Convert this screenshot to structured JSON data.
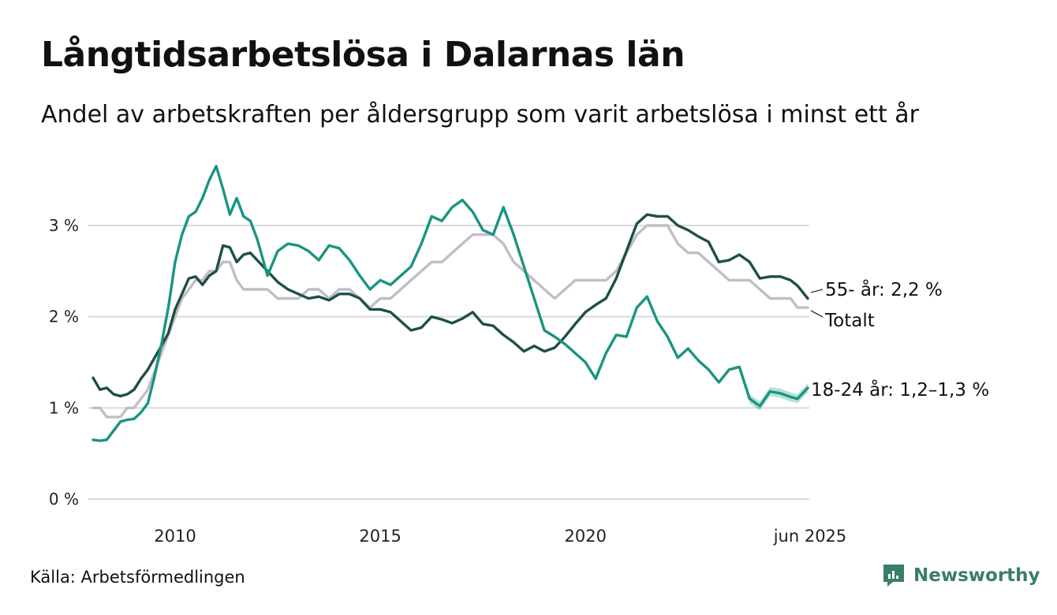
{
  "title": "Långtidsarbetslösa i Dalarnas län",
  "subtitle": "Andel av arbetskraften per åldersgrupp som varit arbetslösa i minst ett år",
  "source": "Källa: Arbetsförmedlingen",
  "brand": {
    "name": "Newsworthy",
    "color": "#3b7d6c"
  },
  "chart_data": {
    "type": "line",
    "title": "Långtidsarbetslösa i Dalarnas län",
    "subtitle": "Andel av arbetskraften per åldersgrupp som varit arbetslösa i minst ett år",
    "xlim": [
      "2008-01",
      "2025-06"
    ],
    "ylim": [
      0,
      3.8
    ],
    "grid": true,
    "y_ticks": [
      {
        "value": 0,
        "label": "0 %"
      },
      {
        "value": 1,
        "label": "1 %"
      },
      {
        "value": 2,
        "label": "2 %"
      },
      {
        "value": 3,
        "label": "3 %"
      }
    ],
    "x_ticks": [
      {
        "value": "2010-01",
        "label": "2010"
      },
      {
        "value": "2015-01",
        "label": "2015"
      },
      {
        "value": "2020-01",
        "label": "2020"
      },
      {
        "value": "2025-06",
        "label": "jun 2025"
      }
    ],
    "series": [
      {
        "name": "Totalt",
        "label": "Totalt",
        "color": "#c2bdc9",
        "points": [
          [
            "2008-01",
            1.0
          ],
          [
            "2008-03",
            1.0
          ],
          [
            "2008-05",
            0.9
          ],
          [
            "2008-07",
            0.9
          ],
          [
            "2008-09",
            0.9
          ],
          [
            "2008-11",
            1.0
          ],
          [
            "2009-01",
            1.0
          ],
          [
            "2009-03",
            1.1
          ],
          [
            "2009-05",
            1.2
          ],
          [
            "2009-07",
            1.4
          ],
          [
            "2009-09",
            1.6
          ],
          [
            "2009-11",
            1.8
          ],
          [
            "2010-01",
            2.0
          ],
          [
            "2010-03",
            2.2
          ],
          [
            "2010-05",
            2.3
          ],
          [
            "2010-07",
            2.4
          ],
          [
            "2010-09",
            2.4
          ],
          [
            "2010-11",
            2.5
          ],
          [
            "2011-01",
            2.5
          ],
          [
            "2011-03",
            2.6
          ],
          [
            "2011-05",
            2.6
          ],
          [
            "2011-07",
            2.4
          ],
          [
            "2011-09",
            2.3
          ],
          [
            "2011-11",
            2.3
          ],
          [
            "2012-01",
            2.3
          ],
          [
            "2012-04",
            2.3
          ],
          [
            "2012-07",
            2.2
          ],
          [
            "2012-10",
            2.2
          ],
          [
            "2013-01",
            2.2
          ],
          [
            "2013-04",
            2.3
          ],
          [
            "2013-07",
            2.3
          ],
          [
            "2013-10",
            2.2
          ],
          [
            "2014-01",
            2.3
          ],
          [
            "2014-04",
            2.3
          ],
          [
            "2014-07",
            2.2
          ],
          [
            "2014-10",
            2.1
          ],
          [
            "2015-01",
            2.2
          ],
          [
            "2015-04",
            2.2
          ],
          [
            "2015-07",
            2.3
          ],
          [
            "2015-10",
            2.4
          ],
          [
            "2016-01",
            2.5
          ],
          [
            "2016-04",
            2.6
          ],
          [
            "2016-07",
            2.6
          ],
          [
            "2016-10",
            2.7
          ],
          [
            "2017-01",
            2.8
          ],
          [
            "2017-04",
            2.9
          ],
          [
            "2017-07",
            2.9
          ],
          [
            "2017-10",
            2.9
          ],
          [
            "2018-01",
            2.8
          ],
          [
            "2018-04",
            2.6
          ],
          [
            "2018-07",
            2.5
          ],
          [
            "2018-10",
            2.4
          ],
          [
            "2019-01",
            2.3
          ],
          [
            "2019-04",
            2.2
          ],
          [
            "2019-07",
            2.3
          ],
          [
            "2019-10",
            2.4
          ],
          [
            "2020-01",
            2.4
          ],
          [
            "2020-04",
            2.4
          ],
          [
            "2020-07",
            2.4
          ],
          [
            "2020-10",
            2.5
          ],
          [
            "2021-01",
            2.7
          ],
          [
            "2021-04",
            2.9
          ],
          [
            "2021-07",
            3.0
          ],
          [
            "2021-10",
            3.0
          ],
          [
            "2022-01",
            3.0
          ],
          [
            "2022-04",
            2.8
          ],
          [
            "2022-07",
            2.7
          ],
          [
            "2022-10",
            2.7
          ],
          [
            "2023-01",
            2.6
          ],
          [
            "2023-04",
            2.5
          ],
          [
            "2023-07",
            2.4
          ],
          [
            "2023-10",
            2.4
          ],
          [
            "2024-01",
            2.4
          ],
          [
            "2024-04",
            2.3
          ],
          [
            "2024-07",
            2.2
          ],
          [
            "2024-10",
            2.2
          ],
          [
            "2025-01",
            2.2
          ],
          [
            "2025-03",
            2.1
          ],
          [
            "2025-06",
            2.1
          ]
        ]
      },
      {
        "name": "55- år",
        "label": "55- år: 2,2 %",
        "color": "#1f4f45",
        "points": [
          [
            "2008-01",
            1.33
          ],
          [
            "2008-03",
            1.2
          ],
          [
            "2008-05",
            1.22
          ],
          [
            "2008-07",
            1.15
          ],
          [
            "2008-09",
            1.13
          ],
          [
            "2008-11",
            1.15
          ],
          [
            "2009-01",
            1.2
          ],
          [
            "2009-03",
            1.32
          ],
          [
            "2009-05",
            1.42
          ],
          [
            "2009-07",
            1.55
          ],
          [
            "2009-09",
            1.68
          ],
          [
            "2009-11",
            1.82
          ],
          [
            "2010-01",
            2.08
          ],
          [
            "2010-03",
            2.25
          ],
          [
            "2010-05",
            2.42
          ],
          [
            "2010-07",
            2.44
          ],
          [
            "2010-09",
            2.35
          ],
          [
            "2010-11",
            2.45
          ],
          [
            "2011-01",
            2.5
          ],
          [
            "2011-03",
            2.78
          ],
          [
            "2011-05",
            2.76
          ],
          [
            "2011-07",
            2.6
          ],
          [
            "2011-09",
            2.68
          ],
          [
            "2011-11",
            2.7
          ],
          [
            "2012-01",
            2.62
          ],
          [
            "2012-04",
            2.5
          ],
          [
            "2012-07",
            2.38
          ],
          [
            "2012-10",
            2.3
          ],
          [
            "2013-01",
            2.25
          ],
          [
            "2013-04",
            2.2
          ],
          [
            "2013-07",
            2.22
          ],
          [
            "2013-10",
            2.18
          ],
          [
            "2014-01",
            2.25
          ],
          [
            "2014-04",
            2.25
          ],
          [
            "2014-07",
            2.2
          ],
          [
            "2014-10",
            2.08
          ],
          [
            "2015-01",
            2.08
          ],
          [
            "2015-04",
            2.05
          ],
          [
            "2015-07",
            1.95
          ],
          [
            "2015-10",
            1.85
          ],
          [
            "2016-01",
            1.88
          ],
          [
            "2016-04",
            2.0
          ],
          [
            "2016-07",
            1.97
          ],
          [
            "2016-10",
            1.93
          ],
          [
            "2017-01",
            1.98
          ],
          [
            "2017-04",
            2.05
          ],
          [
            "2017-07",
            1.92
          ],
          [
            "2017-10",
            1.9
          ],
          [
            "2018-01",
            1.8
          ],
          [
            "2018-04",
            1.72
          ],
          [
            "2018-07",
            1.62
          ],
          [
            "2018-10",
            1.68
          ],
          [
            "2019-01",
            1.62
          ],
          [
            "2019-04",
            1.66
          ],
          [
            "2019-07",
            1.78
          ],
          [
            "2019-10",
            1.92
          ],
          [
            "2020-01",
            2.05
          ],
          [
            "2020-04",
            2.13
          ],
          [
            "2020-07",
            2.2
          ],
          [
            "2020-10",
            2.42
          ],
          [
            "2021-01",
            2.72
          ],
          [
            "2021-04",
            3.02
          ],
          [
            "2021-07",
            3.12
          ],
          [
            "2021-10",
            3.1
          ],
          [
            "2022-01",
            3.1
          ],
          [
            "2022-04",
            3.0
          ],
          [
            "2022-07",
            2.95
          ],
          [
            "2022-10",
            2.88
          ],
          [
            "2023-01",
            2.82
          ],
          [
            "2023-04",
            2.6
          ],
          [
            "2023-07",
            2.62
          ],
          [
            "2023-10",
            2.68
          ],
          [
            "2024-01",
            2.6
          ],
          [
            "2024-04",
            2.42
          ],
          [
            "2024-07",
            2.44
          ],
          [
            "2024-10",
            2.44
          ],
          [
            "2025-01",
            2.4
          ],
          [
            "2025-03",
            2.34
          ],
          [
            "2025-06",
            2.2
          ]
        ]
      },
      {
        "name": "18-24 år",
        "label": "18-24 år: 1,2–1,3 %",
        "color": "#1a9482",
        "band_from": "2024-01",
        "points": [
          [
            "2008-01",
            0.65
          ],
          [
            "2008-03",
            0.64
          ],
          [
            "2008-05",
            0.65
          ],
          [
            "2008-07",
            0.75
          ],
          [
            "2008-09",
            0.85
          ],
          [
            "2008-11",
            0.87
          ],
          [
            "2009-01",
            0.88
          ],
          [
            "2009-03",
            0.95
          ],
          [
            "2009-05",
            1.05
          ],
          [
            "2009-07",
            1.35
          ],
          [
            "2009-09",
            1.7
          ],
          [
            "2009-11",
            2.1
          ],
          [
            "2010-01",
            2.6
          ],
          [
            "2010-03",
            2.9
          ],
          [
            "2010-05",
            3.1
          ],
          [
            "2010-07",
            3.15
          ],
          [
            "2010-09",
            3.3
          ],
          [
            "2010-11",
            3.5
          ],
          [
            "2011-01",
            3.65
          ],
          [
            "2011-03",
            3.4
          ],
          [
            "2011-05",
            3.12
          ],
          [
            "2011-07",
            3.3
          ],
          [
            "2011-09",
            3.1
          ],
          [
            "2011-11",
            3.05
          ],
          [
            "2012-01",
            2.85
          ],
          [
            "2012-04",
            2.45
          ],
          [
            "2012-07",
            2.72
          ],
          [
            "2012-10",
            2.8
          ],
          [
            "2013-01",
            2.78
          ],
          [
            "2013-04",
            2.72
          ],
          [
            "2013-07",
            2.62
          ],
          [
            "2013-10",
            2.78
          ],
          [
            "2014-01",
            2.75
          ],
          [
            "2014-04",
            2.62
          ],
          [
            "2014-07",
            2.45
          ],
          [
            "2014-10",
            2.3
          ],
          [
            "2015-01",
            2.4
          ],
          [
            "2015-04",
            2.35
          ],
          [
            "2015-07",
            2.45
          ],
          [
            "2015-10",
            2.55
          ],
          [
            "2016-01",
            2.8
          ],
          [
            "2016-04",
            3.1
          ],
          [
            "2016-07",
            3.05
          ],
          [
            "2016-10",
            3.2
          ],
          [
            "2017-01",
            3.28
          ],
          [
            "2017-04",
            3.15
          ],
          [
            "2017-07",
            2.95
          ],
          [
            "2017-10",
            2.9
          ],
          [
            "2018-01",
            3.2
          ],
          [
            "2018-04",
            2.9
          ],
          [
            "2018-07",
            2.55
          ],
          [
            "2018-10",
            2.2
          ],
          [
            "2019-01",
            1.85
          ],
          [
            "2019-04",
            1.78
          ],
          [
            "2019-07",
            1.7
          ],
          [
            "2019-10",
            1.6
          ],
          [
            "2020-01",
            1.5
          ],
          [
            "2020-04",
            1.32
          ],
          [
            "2020-07",
            1.6
          ],
          [
            "2020-10",
            1.8
          ],
          [
            "2021-01",
            1.78
          ],
          [
            "2021-04",
            2.1
          ],
          [
            "2021-07",
            2.22
          ],
          [
            "2021-10",
            1.95
          ],
          [
            "2022-01",
            1.78
          ],
          [
            "2022-04",
            1.55
          ],
          [
            "2022-07",
            1.65
          ],
          [
            "2022-10",
            1.52
          ],
          [
            "2023-01",
            1.42
          ],
          [
            "2023-04",
            1.28
          ],
          [
            "2023-07",
            1.42
          ],
          [
            "2023-10",
            1.45
          ],
          [
            "2024-01",
            1.1
          ],
          [
            "2024-04",
            1.02
          ],
          [
            "2024-07",
            1.18
          ],
          [
            "2024-10",
            1.16
          ],
          [
            "2025-01",
            1.12
          ],
          [
            "2025-03",
            1.1
          ],
          [
            "2025-06",
            1.22
          ]
        ]
      }
    ]
  }
}
